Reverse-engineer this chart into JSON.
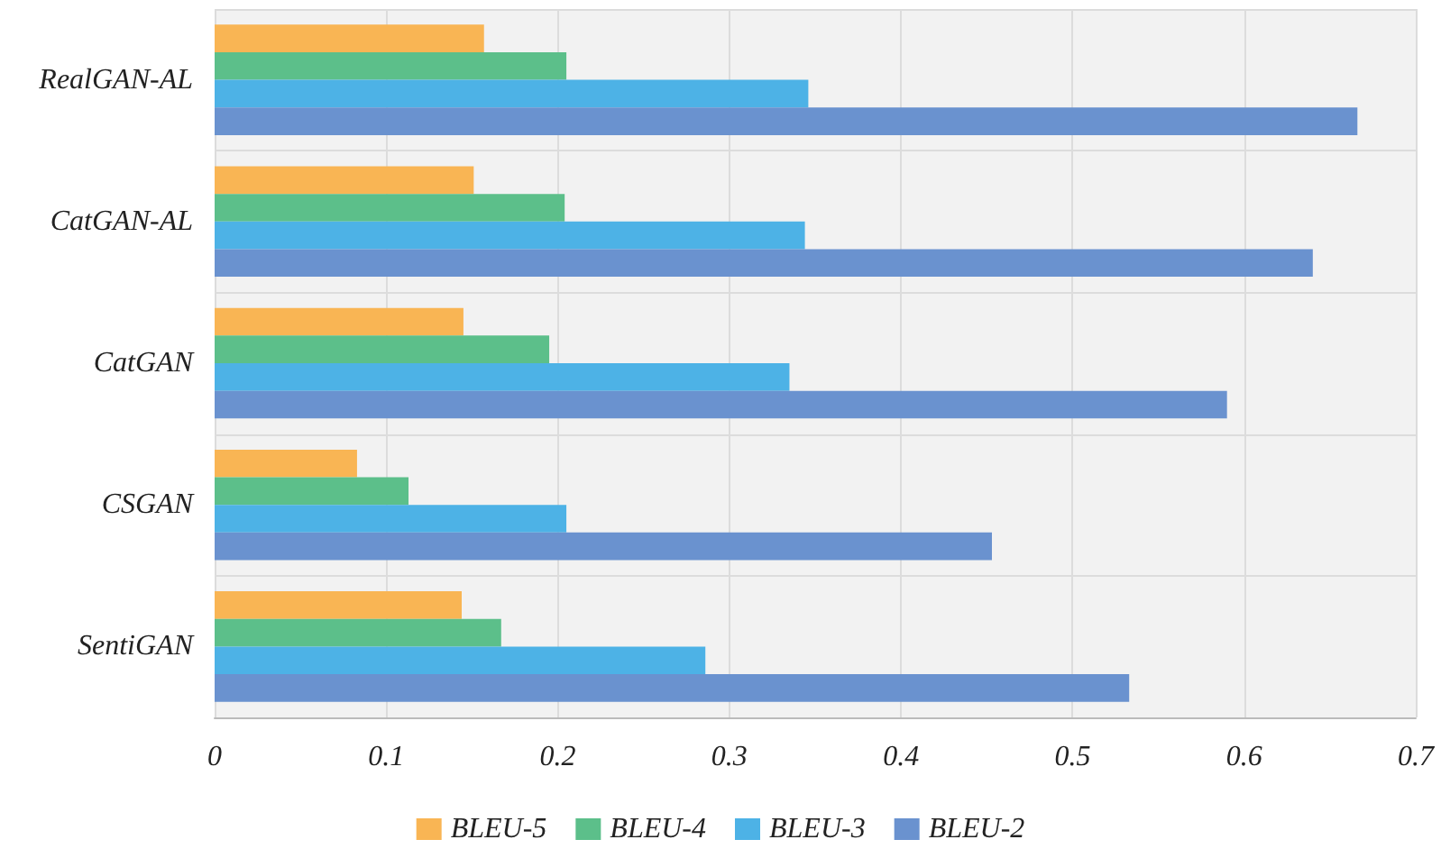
{
  "chart_data": {
    "type": "bar",
    "orientation": "horizontal",
    "categories": [
      "RealGAN-AL",
      "CatGAN-AL",
      "CatGAN",
      "CSGAN",
      "SentiGAN"
    ],
    "series": [
      {
        "name": "BLEU-5",
        "color": "#f9b554",
        "values": [
          0.157,
          0.151,
          0.145,
          0.083,
          0.144
        ]
      },
      {
        "name": "BLEU-4",
        "color": "#5cbf8a",
        "values": [
          0.205,
          0.204,
          0.195,
          0.113,
          0.167
        ]
      },
      {
        "name": "BLEU-3",
        "color": "#4db2e6",
        "values": [
          0.346,
          0.344,
          0.335,
          0.205,
          0.286
        ]
      },
      {
        "name": "BLEU-2",
        "color": "#6a92cf",
        "values": [
          0.666,
          0.64,
          0.59,
          0.453,
          0.533
        ]
      }
    ],
    "xlim": [
      0,
      0.7
    ],
    "xticks": [
      0,
      0.1,
      0.2,
      0.3,
      0.4,
      0.5,
      0.6,
      0.7
    ],
    "grid": true,
    "legend": "bottom"
  }
}
